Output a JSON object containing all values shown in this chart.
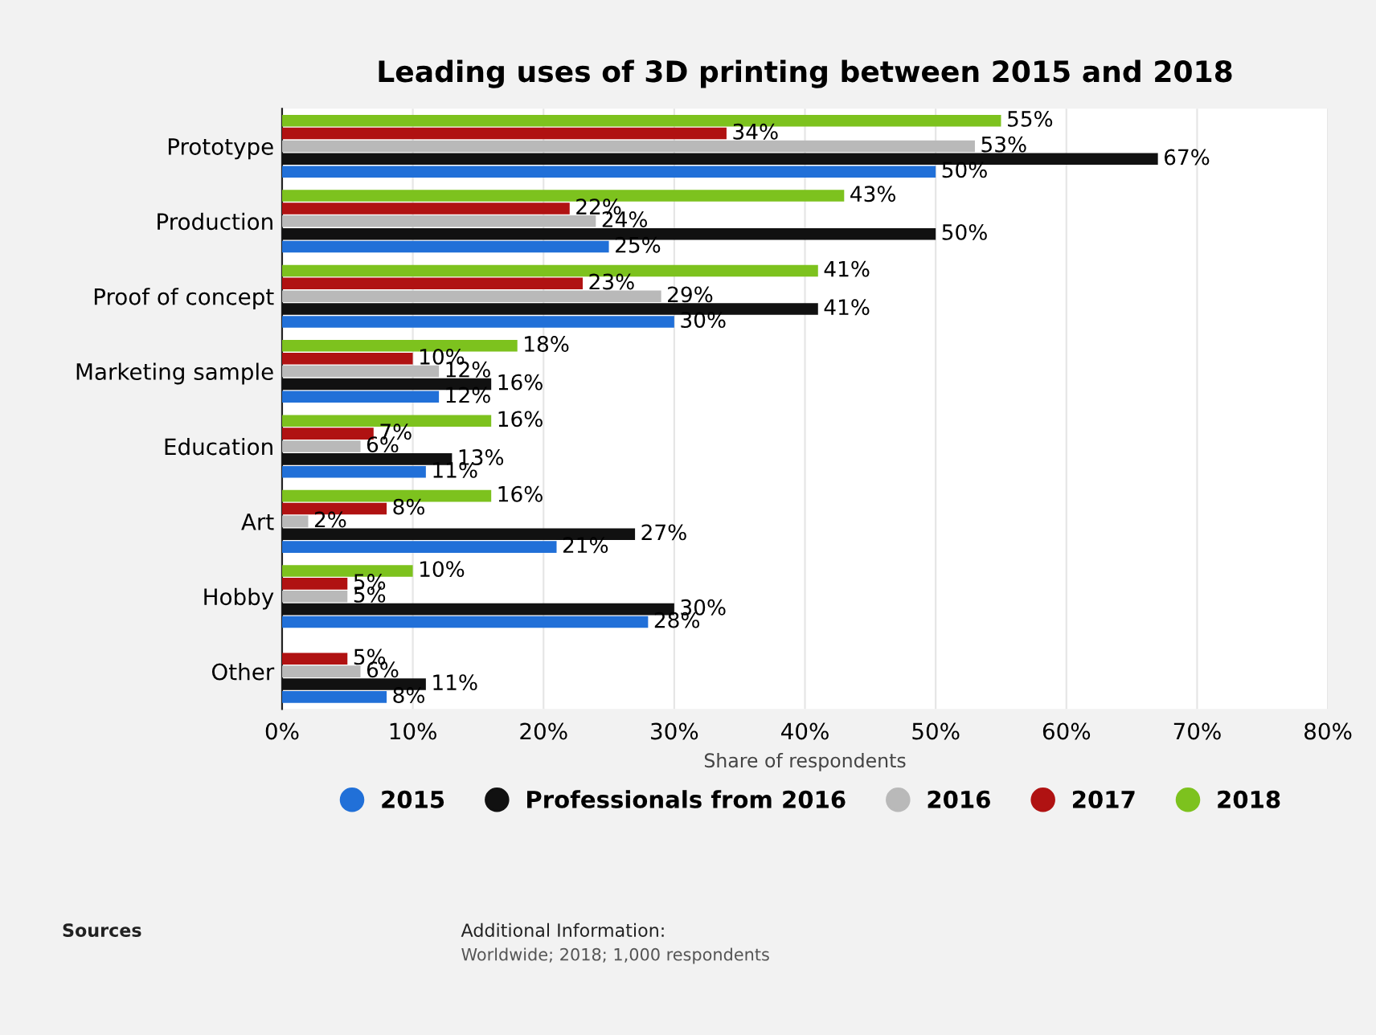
{
  "chart_data": {
    "type": "bar",
    "orientation": "horizontal",
    "title": "Leading uses of 3D printing between 2015 and 2018",
    "xlabel": "Share of respondents",
    "categories": [
      "Prototype",
      "Production",
      "Proof of concept",
      "Marketing sample",
      "Education",
      "Art",
      "Hobby",
      "Other"
    ],
    "series": [
      {
        "name": "2015",
        "color": "#2170d8",
        "values": [
          50,
          25,
          30,
          12,
          11,
          21,
          28,
          8
        ],
        "value_labels": [
          "50%",
          "25%",
          "30%",
          "12%",
          "11%",
          "21%",
          "28%",
          "8%"
        ]
      },
      {
        "name": "Professionals from 2016",
        "color": "#111111",
        "values": [
          67,
          50,
          41,
          16,
          13,
          27,
          30,
          11
        ],
        "value_labels": [
          "67%",
          "50%",
          "41%",
          "16%",
          "13%",
          "27%",
          "30%",
          "11%"
        ]
      },
      {
        "name": "2016",
        "color": "#b9b9b9",
        "values": [
          53,
          24,
          29,
          12,
          6,
          2,
          5,
          6
        ],
        "value_labels": [
          "53%",
          "24%",
          "29%",
          "12%",
          "6%",
          "2%",
          "5%",
          "6%"
        ]
      },
      {
        "name": "2017",
        "color": "#b01212",
        "values": [
          34,
          22,
          23,
          10,
          7,
          8,
          5,
          5
        ],
        "value_labels": [
          "34%",
          "22%",
          "23%",
          "10%",
          "7%",
          "8%",
          "5%",
          "5%"
        ]
      },
      {
        "name": "2018",
        "color": "#7dc21e",
        "values": [
          55,
          43,
          41,
          18,
          16,
          16,
          10,
          null
        ],
        "value_labels": [
          "55%",
          "43%",
          "41%",
          "18%",
          "16%",
          "16%",
          "10%",
          null
        ]
      }
    ],
    "xlim": [
      0,
      80
    ],
    "xticks": [
      {
        "value": 0,
        "label": "0%"
      },
      {
        "value": 10,
        "label": "10%"
      },
      {
        "value": 20,
        "label": "20%"
      },
      {
        "value": 30,
        "label": "30%"
      },
      {
        "value": 40,
        "label": "40%"
      },
      {
        "value": 50,
        "label": "50%"
      },
      {
        "value": 60,
        "label": "60%"
      },
      {
        "value": 70,
        "label": "70%"
      },
      {
        "value": 80,
        "label": "80%"
      }
    ],
    "grid": "x",
    "legend": "bottom",
    "annotations": [
      "Sources",
      "Additional Information:",
      "Worldwide; 2018; 1,000 respondents"
    ]
  }
}
